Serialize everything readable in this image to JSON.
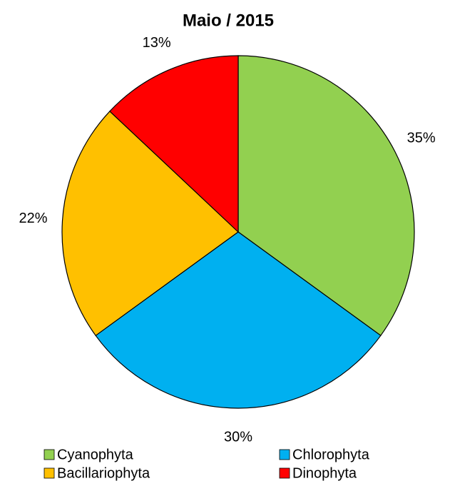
{
  "chart_data": {
    "type": "pie",
    "title": "Maio / 2015",
    "categories": [
      "Cyanophyta",
      "Chlorophyta",
      "Bacillariophyta",
      "Dinophyta"
    ],
    "values": [
      35,
      30,
      22,
      13
    ],
    "value_labels": [
      "35%",
      "30%",
      "22%",
      "13%"
    ],
    "colors": [
      "#92d050",
      "#00b0f0",
      "#ffc000",
      "#ff0000"
    ],
    "legend": "bottom"
  }
}
